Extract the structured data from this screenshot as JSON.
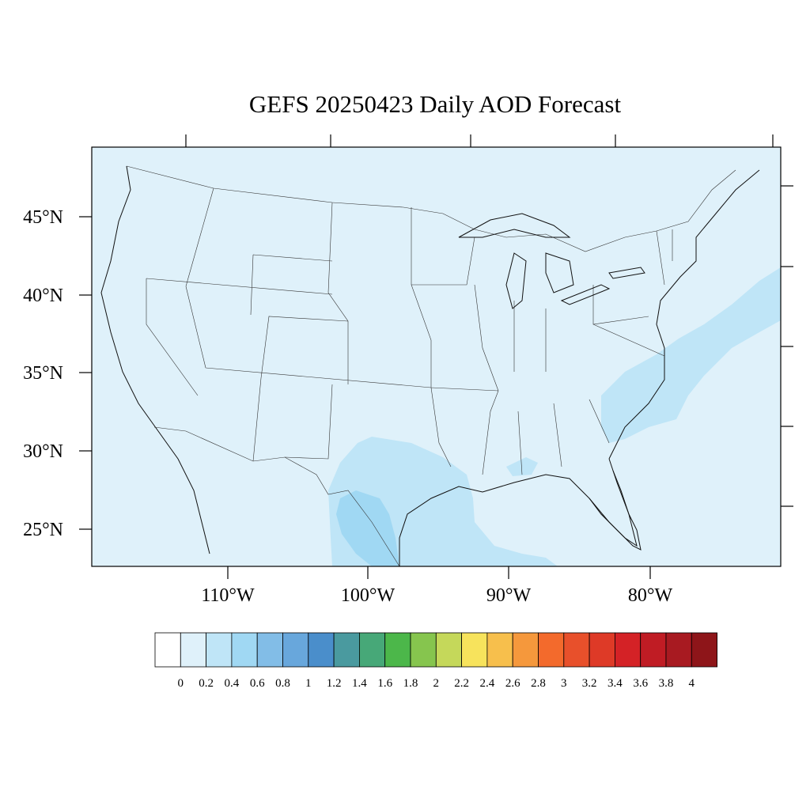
{
  "title": "GEFS 20250423 Daily AOD Forecast",
  "map": {
    "projection": "lambert-conformal-like (curved graticule)",
    "region": "Contiguous United States",
    "background_color": "#dff1fa",
    "lat_labels": [
      "45°N",
      "40°N",
      "35°N",
      "30°N",
      "25°N"
    ],
    "lon_labels": [
      "110°W",
      "100°W",
      "90°W",
      "80°W"
    ]
  },
  "aod_field": {
    "peak_areas": [
      {
        "region": "South Texas / Rio Grande",
        "aod_range": "0.4-0.6"
      },
      {
        "region": "Western Gulf of Mexico",
        "aod_range": "0.2-0.4"
      },
      {
        "region": "Southeast coast / Atlantic offshore plume",
        "aod_range": "0.2-0.4"
      }
    ],
    "elsewhere": "0.0-0.2"
  },
  "colorbar": {
    "labels": [
      "0",
      "0.2",
      "0.4",
      "0.6",
      "0.8",
      "1",
      "1.2",
      "1.4",
      "1.6",
      "1.8",
      "2",
      "2.2",
      "2.4",
      "2.6",
      "2.8",
      "3",
      "3.2",
      "3.4",
      "3.6",
      "3.8",
      "4"
    ],
    "colors": [
      "#ffffff",
      "#dff1fa",
      "#bfe5f7",
      "#a0d8f3",
      "#82bde7",
      "#68a7dc",
      "#4a8ecb",
      "#4a9a9f",
      "#47a878",
      "#4cb74a",
      "#86c54e",
      "#c5d85a",
      "#f7e35c",
      "#f7bf4c",
      "#f5983c",
      "#f36a2c",
      "#e8502b",
      "#de3a27",
      "#d42226",
      "#c01c24",
      "#a81a21",
      "#8e1519"
    ]
  }
}
